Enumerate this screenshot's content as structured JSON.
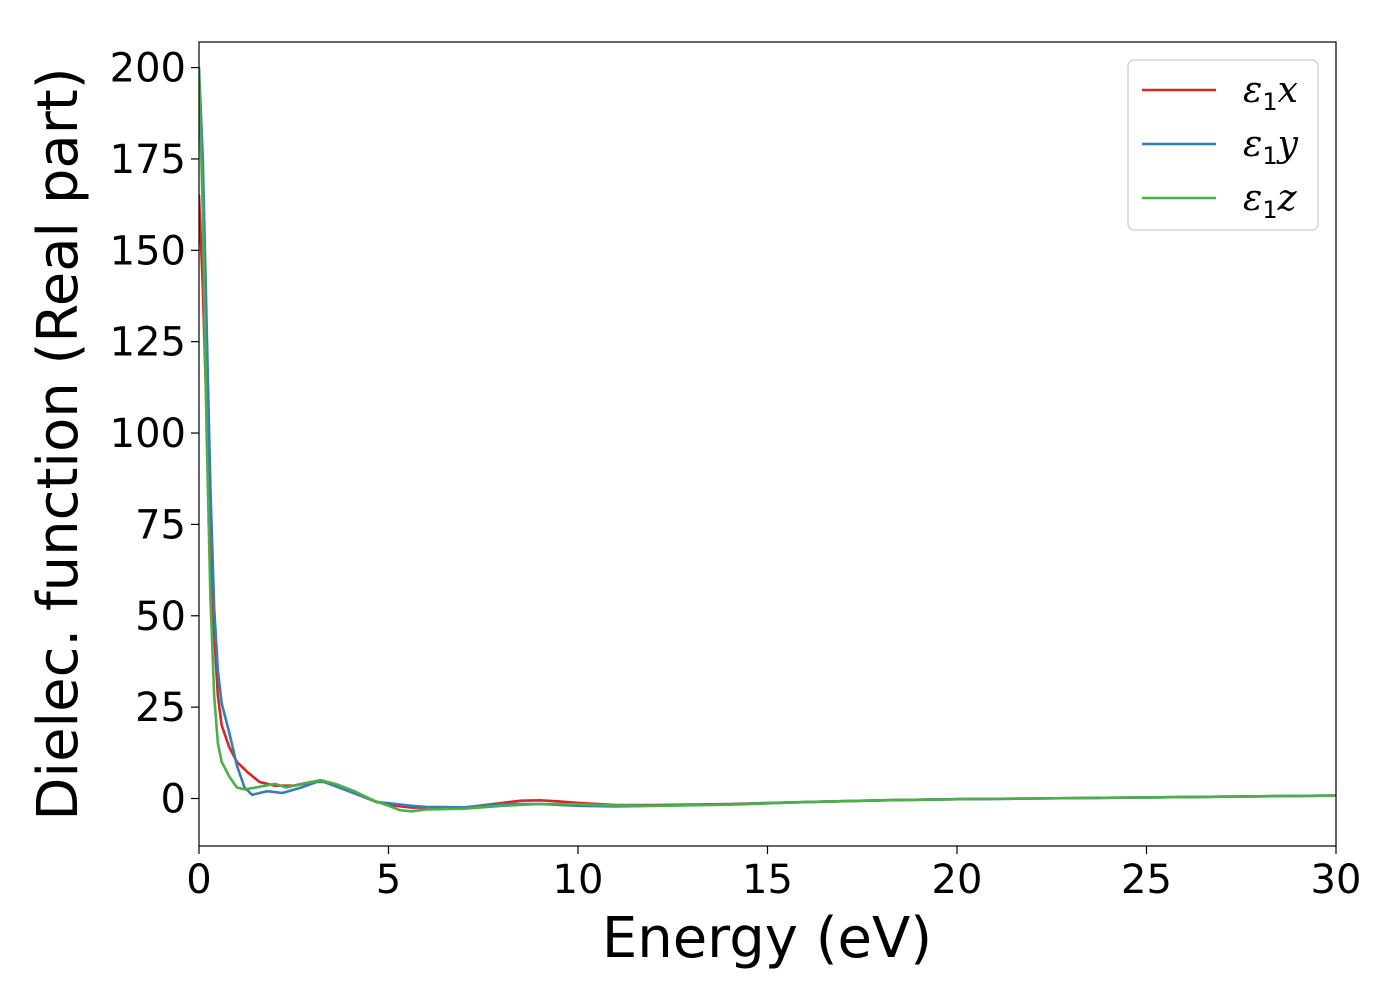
{
  "chart_data": {
    "type": "line",
    "xlabel": "Energy (eV)",
    "ylabel": "Dielec. function (Real part)",
    "xlim": [
      0,
      30
    ],
    "ylim": [
      -13,
      207
    ],
    "xticks": [
      0,
      5,
      10,
      15,
      20,
      25,
      30
    ],
    "yticks": [
      0,
      25,
      50,
      75,
      100,
      125,
      150,
      175,
      200
    ],
    "grid": false,
    "legend_position": "top-right",
    "series": [
      {
        "name": "ε1x",
        "legend_base": "ε",
        "legend_sub": "1",
        "legend_var": "x",
        "color": "#d62728",
        "x": [
          0,
          0.1,
          0.2,
          0.3,
          0.4,
          0.5,
          0.6,
          0.8,
          1.0,
          1.3,
          1.6,
          2.0,
          2.5,
          3.0,
          3.3,
          3.7,
          4.2,
          4.7,
          5.2,
          5.6,
          6.0,
          7.0,
          8.0,
          8.5,
          9.0,
          9.5,
          10.0,
          11.0,
          12.0,
          14.0,
          16.0,
          18.0,
          20.0,
          22.0,
          25.0,
          28.0,
          30.0
        ],
        "y": [
          165,
          140,
          105,
          72,
          45,
          28,
          20,
          14,
          10,
          7,
          4.5,
          3.5,
          3.5,
          4.5,
          4.8,
          3.0,
          1.0,
          -1.0,
          -2.0,
          -2.5,
          -2.5,
          -2.5,
          -1.2,
          -0.6,
          -0.5,
          -0.8,
          -1.2,
          -1.8,
          -1.8,
          -1.5,
          -1.0,
          -0.5,
          -0.2,
          0.0,
          0.3,
          0.6,
          0.8
        ]
      },
      {
        "name": "ε1y",
        "legend_base": "ε",
        "legend_sub": "1",
        "legend_var": "y",
        "color": "#377eb8",
        "x": [
          0,
          0.1,
          0.2,
          0.3,
          0.4,
          0.5,
          0.6,
          0.8,
          1.0,
          1.2,
          1.4,
          1.6,
          1.8,
          2.2,
          2.7,
          3.1,
          3.3,
          3.7,
          4.2,
          4.7,
          5.2,
          5.6,
          6.0,
          7.0,
          8.0,
          9.0,
          10.0,
          11.0,
          12.0,
          14.0,
          16.0,
          18.0,
          20.0,
          22.0,
          25.0,
          28.0,
          30.0
        ],
        "y": [
          200,
          175,
          130,
          85,
          52,
          35,
          26,
          18,
          9,
          3,
          1,
          1.5,
          2,
          1.5,
          3,
          4.5,
          4.5,
          3.0,
          1.0,
          -1.0,
          -1.5,
          -2.0,
          -2.3,
          -2.4,
          -1.5,
          -1.5,
          -2.0,
          -2.2,
          -2.0,
          -1.6,
          -1.0,
          -0.5,
          -0.2,
          0.0,
          0.3,
          0.6,
          0.8
        ]
      },
      {
        "name": "ε1z",
        "legend_base": "ε",
        "legend_sub": "1",
        "legend_var": "z",
        "color": "#4daf4a",
        "x": [
          0,
          0.1,
          0.2,
          0.3,
          0.4,
          0.5,
          0.6,
          0.8,
          1.0,
          1.2,
          1.5,
          2.0,
          2.3,
          2.7,
          3.2,
          3.6,
          4.1,
          4.6,
          5.0,
          5.3,
          5.6,
          6.0,
          7.0,
          8.0,
          9.0,
          10.0,
          11.0,
          12.0,
          14.0,
          16.0,
          18.0,
          20.0,
          22.0,
          25.0,
          28.0,
          30.0
        ],
        "y": [
          200,
          160,
          100,
          55,
          28,
          15,
          10,
          6,
          3,
          2.5,
          3,
          4,
          3,
          4,
          5,
          4.0,
          2.0,
          -0.5,
          -2.0,
          -3.2,
          -3.5,
          -3.0,
          -2.8,
          -2.0,
          -1.5,
          -1.6,
          -1.9,
          -2.0,
          -1.7,
          -1.0,
          -0.5,
          -0.2,
          0.0,
          0.3,
          0.6,
          0.8
        ]
      }
    ]
  }
}
